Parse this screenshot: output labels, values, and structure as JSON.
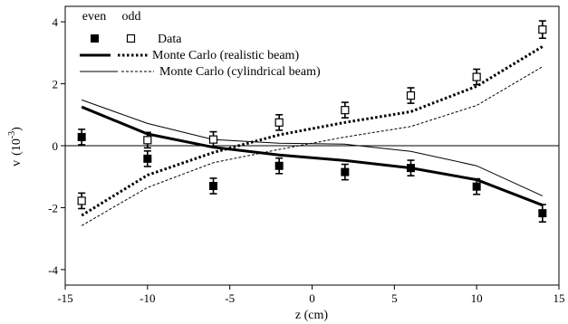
{
  "chart_data": {
    "type": "scatter",
    "xlabel": "z (cm)",
    "ylabel": "v",
    "ylabel_unit": "(10",
    "ylabel_unit_exp": "-3",
    "ylabel_unit_close": ")",
    "xlim": [
      -15,
      15
    ],
    "ylim": [
      -4.5,
      4.5
    ],
    "xticks": [
      -15,
      -10,
      -5,
      0,
      5,
      10,
      15
    ],
    "yticks": [
      -4,
      -2,
      0,
      2,
      4
    ],
    "zero_line": true,
    "legend": {
      "placement": "top-left",
      "col_even": "even",
      "col_odd": "odd",
      "data_label": "Data",
      "mc_realistic_label": "Monte Carlo (realistic beam)",
      "mc_cylindrical_label": "Monte Carlo (cylindrical beam)"
    },
    "series": [
      {
        "name": "Data",
        "group": "even",
        "marker": "filled-square",
        "x": [
          -14,
          -10,
          -6,
          -2,
          2,
          6,
          10,
          14
        ],
        "y": [
          0.28,
          -0.42,
          -1.3,
          -0.65,
          -0.85,
          -0.72,
          -1.32,
          -2.18
        ],
        "err": [
          0.25,
          0.25,
          0.25,
          0.25,
          0.25,
          0.25,
          0.25,
          0.28
        ]
      },
      {
        "name": "Data",
        "group": "odd",
        "marker": "open-square",
        "x": [
          -14,
          -10,
          -6,
          -2,
          2,
          6,
          10,
          14
        ],
        "y": [
          -1.78,
          0.18,
          0.2,
          0.75,
          1.15,
          1.62,
          2.22,
          3.75
        ],
        "err": [
          0.25,
          0.25,
          0.25,
          0.25,
          0.25,
          0.25,
          0.25,
          0.28
        ]
      },
      {
        "name": "Monte Carlo (realistic beam)",
        "group": "even",
        "style": "thick-solid",
        "x": [
          -14,
          -10,
          -6,
          -2,
          2,
          6,
          10,
          14
        ],
        "y": [
          1.25,
          0.38,
          -0.05,
          -0.3,
          -0.48,
          -0.72,
          -1.1,
          -1.92
        ]
      },
      {
        "name": "Monte Carlo (realistic beam)",
        "group": "odd",
        "style": "thick-dotted",
        "x": [
          -14,
          -10,
          -6,
          -2,
          2,
          6,
          10,
          14
        ],
        "y": [
          -2.25,
          -0.95,
          -0.22,
          0.35,
          0.75,
          1.1,
          1.92,
          3.2
        ]
      },
      {
        "name": "Monte Carlo (cylindrical beam)",
        "group": "even",
        "style": "thin-solid",
        "x": [
          -14,
          -10,
          -6,
          -2,
          2,
          6,
          10,
          14
        ],
        "y": [
          1.48,
          0.72,
          0.2,
          0.08,
          0.05,
          -0.18,
          -0.65,
          -1.62
        ]
      },
      {
        "name": "Monte Carlo (cylindrical beam)",
        "group": "odd",
        "style": "thin-dashed",
        "x": [
          -14,
          -10,
          -6,
          -2,
          2,
          6,
          10,
          14
        ],
        "y": [
          -2.58,
          -1.35,
          -0.55,
          -0.12,
          0.28,
          0.62,
          1.3,
          2.55
        ]
      }
    ]
  }
}
